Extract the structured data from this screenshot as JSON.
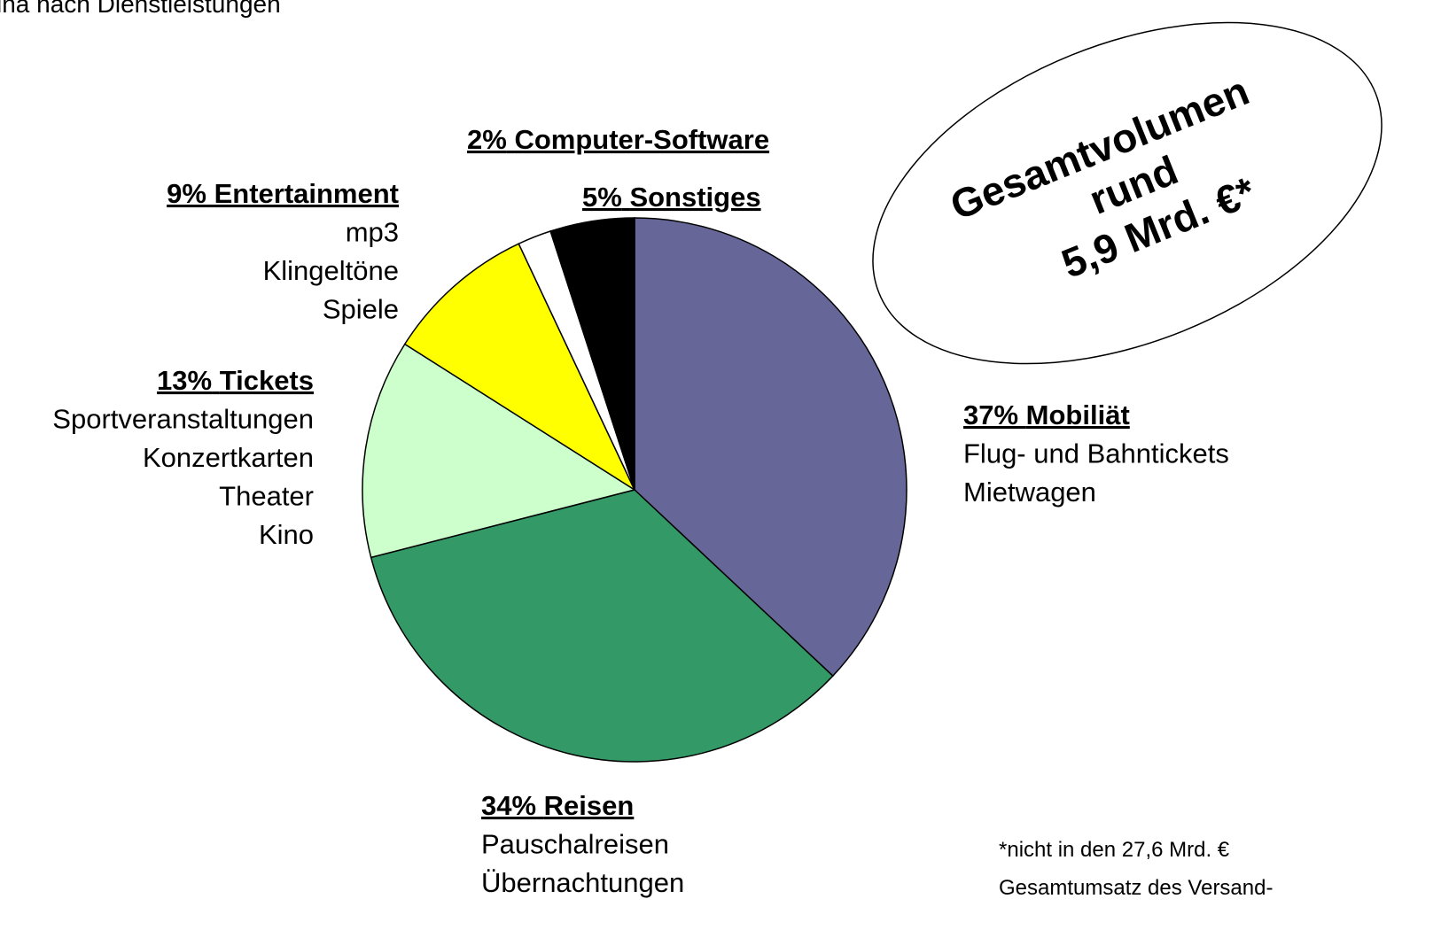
{
  "chart_data": {
    "type": "pie",
    "title": "ina nach Dienstleistungen",
    "categories": [
      "Mobiliät",
      "Reisen",
      "Tickets",
      "Entertainment",
      "Computer-Software",
      "Sonstiges"
    ],
    "values": [
      37,
      34,
      13,
      9,
      2,
      5
    ],
    "value_labels": [
      "37%",
      "34%",
      "13%",
      "9%",
      "2%",
      "5%"
    ],
    "colors": [
      "#666699",
      "#339966",
      "#ccffcc",
      "#ffff00",
      "#ffffff",
      "#000000"
    ],
    "details": [
      [
        "Flug- und Bahntickets",
        "Mietwagen"
      ],
      [
        "Pauschalreisen",
        "Übernachtungen"
      ],
      [
        "Sportveranstaltungen",
        "Konzertkarten",
        "Theater",
        "Kino"
      ],
      [
        "mp3",
        "Klingeltöne",
        "Spiele"
      ],
      [],
      []
    ],
    "annotation": [
      "Gesamtvolumen",
      "rund",
      "5,9 Mrd. €*"
    ],
    "footnote": [
      "*nicht in den 27,6 Mrd. €",
      "Gesamtumsatz des Versand-"
    ]
  }
}
